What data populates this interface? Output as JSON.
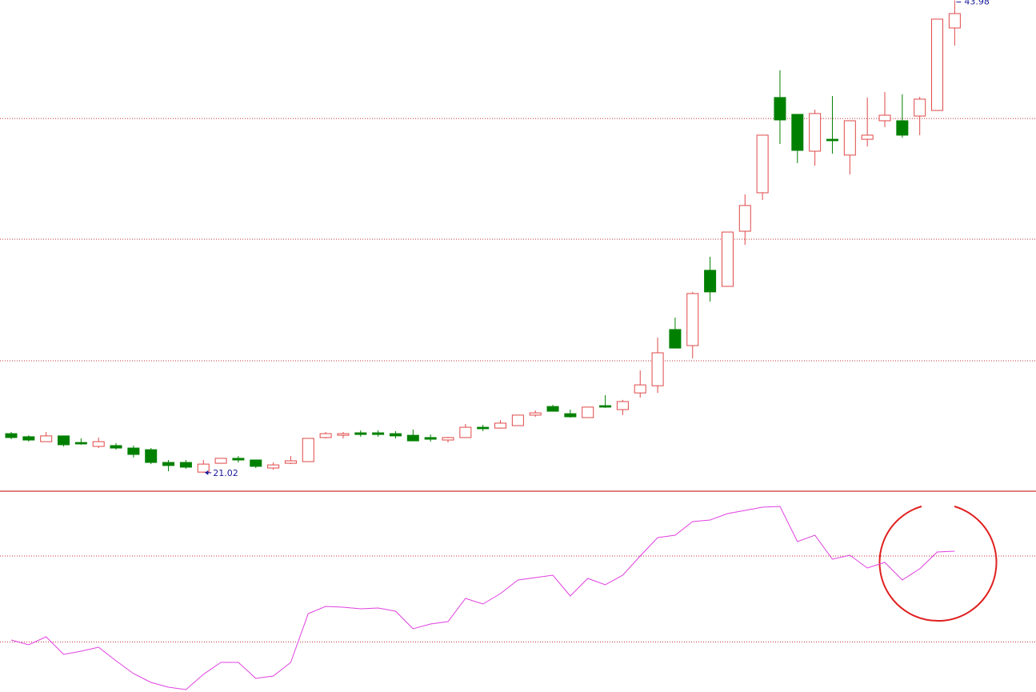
{
  "chart_data": [
    {
      "type": "candlestick",
      "open": [
        22.92,
        22.77,
        22.53,
        22.81,
        22.49,
        22.3,
        22.34,
        22.22,
        22.14,
        21.52,
        21.52,
        21.05,
        21.48,
        21.72,
        21.64,
        21.25,
        21.48,
        21.56,
        22.73,
        22.84,
        22.96,
        22.96,
        22.92,
        22.84,
        22.73,
        22.61,
        22.73,
        23.23,
        23.19,
        23.31,
        23.82,
        24.24,
        23.89,
        23.7,
        24.28,
        24.09,
        24.9,
        25.25,
        27.98,
        27.2,
        30.86,
        30.08,
        32.76,
        34.63,
        39.26,
        38.44,
        36.65,
        37.23,
        36.46,
        37.23,
        38.13,
        38.13,
        38.36,
        38.63,
        42.64
      ],
      "high": [
        23.0,
        22.84,
        23.0,
        22.81,
        22.69,
        22.73,
        22.46,
        22.34,
        22.22,
        21.64,
        21.64,
        21.64,
        21.72,
        21.83,
        21.64,
        21.52,
        21.83,
        22.69,
        23.0,
        23.0,
        23.08,
        23.08,
        23.04,
        23.12,
        22.88,
        22.77,
        23.39,
        23.35,
        23.58,
        23.82,
        24.05,
        24.32,
        24.09,
        24.21,
        24.79,
        24.56,
        25.99,
        27.59,
        28.56,
        29.81,
        31.52,
        32.72,
        34.55,
        37.43,
        40.58,
        38.44,
        38.67,
        39.33,
        38.13,
        39.26,
        39.53,
        39.41,
        39.29,
        43.07,
        43.98
      ],
      "low": [
        22.65,
        22.53,
        22.53,
        22.3,
        22.38,
        22.22,
        22.14,
        21.76,
        21.44,
        21.09,
        21.21,
        21.02,
        21.48,
        21.52,
        21.25,
        21.17,
        21.44,
        21.56,
        22.69,
        22.69,
        22.77,
        22.77,
        22.69,
        22.57,
        22.53,
        22.49,
        22.73,
        23.04,
        23.16,
        23.31,
        23.74,
        24.01,
        23.7,
        23.7,
        24.17,
        23.82,
        24.67,
        24.9,
        27.08,
        26.58,
        29.34,
        30.08,
        32.1,
        34.28,
        37.0,
        36.07,
        35.95,
        36.53,
        35.52,
        36.88,
        37.82,
        37.31,
        37.43,
        38.63,
        41.78
      ],
      "close": [
        22.73,
        22.61,
        22.81,
        22.38,
        22.42,
        22.53,
        22.22,
        21.91,
        21.52,
        21.37,
        21.29,
        21.44,
        21.72,
        21.64,
        21.33,
        21.4,
        21.6,
        22.69,
        22.92,
        22.92,
        22.88,
        22.88,
        22.81,
        22.57,
        22.65,
        22.73,
        23.23,
        23.16,
        23.43,
        23.82,
        23.93,
        24.01,
        23.74,
        24.21,
        24.21,
        24.48,
        25.29,
        26.85,
        27.08,
        29.73,
        29.81,
        32.72,
        34.01,
        37.43,
        38.17,
        36.69,
        38.48,
        37.16,
        38.13,
        37.43,
        38.4,
        37.43,
        39.18,
        43.07,
        43.34
      ],
      "up_color": "#e04848",
      "down_color": "#008000",
      "ylim": [
        20.2,
        44.0
      ],
      "ygrid": [
        26.46,
        32.37,
        38.24
      ],
      "grid_color": "#c03030"
    },
    {
      "type": "line",
      "values": [
        26,
        23.6,
        27.6,
        18.8,
        20.4,
        22.4,
        15.6,
        9.2,
        4.8,
        2.4,
        1.2,
        8.8,
        14.8,
        14.8,
        6.8,
        8,
        14.8,
        39.2,
        42.8,
        42.4,
        41.6,
        42,
        40.4,
        31.6,
        34,
        35.2,
        46.8,
        44,
        49.2,
        56,
        57.2,
        58.4,
        48,
        56.8,
        53.6,
        58.4,
        68,
        77.2,
        78.4,
        85.2,
        86,
        89.2,
        90.8,
        92.4,
        92.8,
        75.2,
        78.4,
        66.4,
        68.4,
        62,
        64.8,
        56,
        61.6,
        70,
        70.4
      ],
      "color": "#e040e0",
      "ylim": [
        0,
        100
      ],
      "ygrid": [
        68,
        25
      ],
      "grid_color": "#c03030"
    }
  ]
}
